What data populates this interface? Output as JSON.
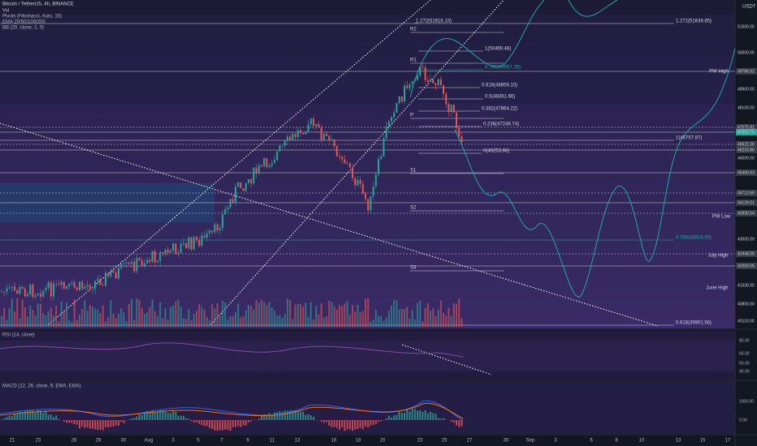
{
  "header": {
    "symbol": "Bitcoin / TetherUS, 4h, BINANCE",
    "indicators": [
      "Vol",
      "Pivots (Fibonacci, Auto, 15)",
      "EMA 20/50/100/200",
      "BB (20, close, 2, 0)"
    ]
  },
  "currency": "USDT",
  "fib_labels": [
    "1.272(51616.10)",
    "1.272(51639.85)",
    "1(50469.46)",
    "0.786(49567.35)",
    "0.618(48859.10)",
    "0.5(48361.66)",
    "0.382(47864.22)",
    "0.236(47248.74)",
    "1(46757.87)",
    "0(46253.86)",
    "0.786(43916.90)",
    "0.618(39901.56)"
  ],
  "pivots": [
    "R2",
    "R1",
    "P",
    "S1",
    "S2",
    "S3"
  ],
  "price_labels": [
    "51500.00",
    "50500.00",
    "49766.52",
    "48900.00",
    "48100.00",
    "47075.91",
    "47002.76",
    "46522.36",
    "46233.86",
    "46000.00",
    "45490.63",
    "44712.60",
    "44129.01",
    "43930.54",
    "43000.00",
    "42448.00",
    "42009.06",
    "41530.00",
    "40800.00",
    "40110.00"
  ],
  "level_names": [
    "PW High",
    "PW Low",
    "July High",
    "June High"
  ],
  "rsi": {
    "title": "RSI (14, close)",
    "ticks": [
      "80.00",
      "60.00",
      "50.00",
      "40.00"
    ]
  },
  "macd": {
    "title": "MACD (12, 26, close, 9, EMA, EMA)",
    "ticks": [
      "1000.00",
      "0.00"
    ]
  },
  "dates": [
    "21",
    "23",
    "26",
    "28",
    "30",
    "Aug",
    "3",
    "5",
    "7",
    "9",
    "11",
    "13",
    "16",
    "18",
    "20",
    "23",
    "25",
    "27",
    "30",
    "Sep",
    "3",
    "6",
    "8",
    "10",
    "13",
    "15",
    "17"
  ]
}
